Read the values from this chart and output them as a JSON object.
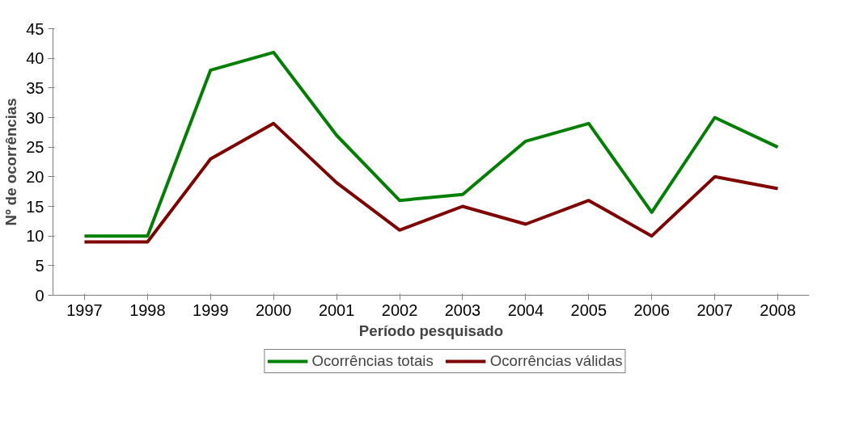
{
  "chart_data": {
    "type": "line",
    "xlabel": "Período pesquisado",
    "ylabel": "Nº de ocorrências",
    "categories": [
      "1997",
      "1998",
      "1999",
      "2000",
      "2001",
      "2002",
      "2003",
      "2004",
      "2005",
      "2006",
      "2007",
      "2008"
    ],
    "series": [
      {
        "name": "Ocorrências totais",
        "color": "#008000",
        "values": [
          10,
          10,
          38,
          41,
          27,
          16,
          17,
          26,
          29,
          14,
          30,
          25
        ]
      },
      {
        "name": "Ocorrências válidas",
        "color": "#800000",
        "values": [
          9,
          9,
          23,
          29,
          19,
          11,
          15,
          12,
          16,
          10,
          20,
          18
        ]
      }
    ],
    "ylim": [
      0,
      45
    ],
    "yticks": [
      0,
      5,
      10,
      15,
      20,
      25,
      30,
      35,
      40,
      45
    ],
    "grid": false,
    "legend": "bottom",
    "marker": "none",
    "line_style": "solid"
  }
}
